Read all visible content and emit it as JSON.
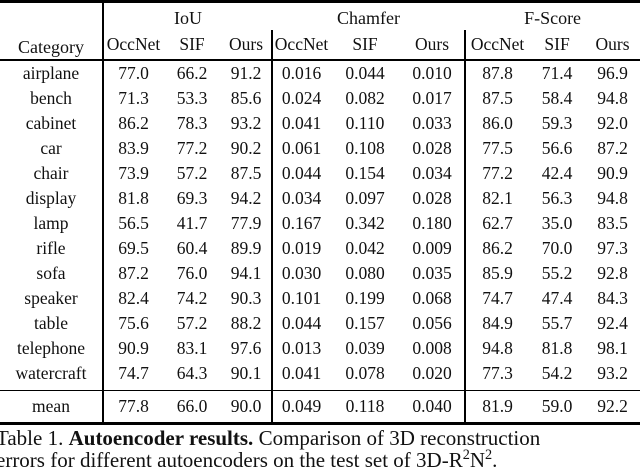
{
  "table": {
    "corner_label": "Category",
    "groups": [
      {
        "label": "IoU",
        "subcols": [
          "OccNet",
          "SIF",
          "Ours"
        ]
      },
      {
        "label": "Chamfer",
        "subcols": [
          "OccNet",
          "SIF",
          "Ours"
        ]
      },
      {
        "label": "F-Score",
        "subcols": [
          "OccNet",
          "SIF",
          "Ours"
        ]
      }
    ],
    "rows": [
      {
        "category": "airplane",
        "values": [
          "77.0",
          "66.2",
          "91.2",
          "0.016",
          "0.044",
          "0.010",
          "87.8",
          "71.4",
          "96.9"
        ],
        "bold": [
          2,
          5,
          8
        ]
      },
      {
        "category": "bench",
        "values": [
          "71.3",
          "53.3",
          "85.6",
          "0.024",
          "0.082",
          "0.017",
          "87.5",
          "58.4",
          "94.8"
        ],
        "bold": [
          2,
          5,
          8
        ]
      },
      {
        "category": "cabinet",
        "values": [
          "86.2",
          "78.3",
          "93.2",
          "0.041",
          "0.110",
          "0.033",
          "86.0",
          "59.3",
          "92.0"
        ],
        "bold": [
          2,
          5,
          8
        ]
      },
      {
        "category": "car",
        "values": [
          "83.9",
          "77.2",
          "90.2",
          "0.061",
          "0.108",
          "0.028",
          "77.5",
          "56.6",
          "87.2"
        ],
        "bold": [
          2,
          5,
          8
        ]
      },
      {
        "category": "chair",
        "values": [
          "73.9",
          "57.2",
          "87.5",
          "0.044",
          "0.154",
          "0.034",
          "77.2",
          "42.4",
          "90.9"
        ],
        "bold": [
          2,
          5,
          8
        ]
      },
      {
        "category": "display",
        "values": [
          "81.8",
          "69.3",
          "94.2",
          "0.034",
          "0.097",
          "0.028",
          "82.1",
          "56.3",
          "94.8"
        ],
        "bold": [
          2,
          5,
          8
        ]
      },
      {
        "category": "lamp",
        "values": [
          "56.5",
          "41.7",
          "77.9",
          "0.167",
          "0.342",
          "0.180",
          "62.7",
          "35.0",
          "83.5"
        ],
        "bold": [
          2,
          3,
          8
        ]
      },
      {
        "category": "rifle",
        "values": [
          "69.5",
          "60.4",
          "89.9",
          "0.019",
          "0.042",
          "0.009",
          "86.2",
          "70.0",
          "97.3"
        ],
        "bold": [
          2,
          5,
          8
        ]
      },
      {
        "category": "sofa",
        "values": [
          "87.2",
          "76.0",
          "94.1",
          "0.030",
          "0.080",
          "0.035",
          "85.9",
          "55.2",
          "92.8"
        ],
        "bold": [
          2,
          3,
          8
        ]
      },
      {
        "category": "speaker",
        "values": [
          "82.4",
          "74.2",
          "90.3",
          "0.101",
          "0.199",
          "0.068",
          "74.7",
          "47.4",
          "84.3"
        ],
        "bold": [
          2,
          5,
          8
        ]
      },
      {
        "category": "table",
        "values": [
          "75.6",
          "57.2",
          "88.2",
          "0.044",
          "0.157",
          "0.056",
          "84.9",
          "55.7",
          "92.4"
        ],
        "bold": [
          2,
          3,
          8
        ]
      },
      {
        "category": "telephone",
        "values": [
          "90.9",
          "83.1",
          "97.6",
          "0.013",
          "0.039",
          "0.008",
          "94.8",
          "81.8",
          "98.1"
        ],
        "bold": [
          2,
          5,
          8
        ]
      },
      {
        "category": "watercraft",
        "values": [
          "74.7",
          "64.3",
          "90.1",
          "0.041",
          "0.078",
          "0.020",
          "77.3",
          "54.2",
          "93.2"
        ],
        "bold": [
          2,
          5,
          8
        ]
      }
    ],
    "mean": {
      "category": "mean",
      "values": [
        "77.8",
        "66.0",
        "90.0",
        "0.049",
        "0.118",
        "0.040",
        "81.9",
        "59.0",
        "92.2"
      ],
      "bold": [
        2,
        5,
        8
      ]
    }
  },
  "caption": {
    "line1_prefix": "Table 1. ",
    "line1_bold": "Autoencoder results.",
    "line1_rest": " Comparison of 3D reconstruction",
    "line2_pre": "errors for different autoencoders on the test set of 3D-R",
    "sup1": "2",
    "line2_mid": "N",
    "sup2": "2",
    "line2_end": "."
  }
}
